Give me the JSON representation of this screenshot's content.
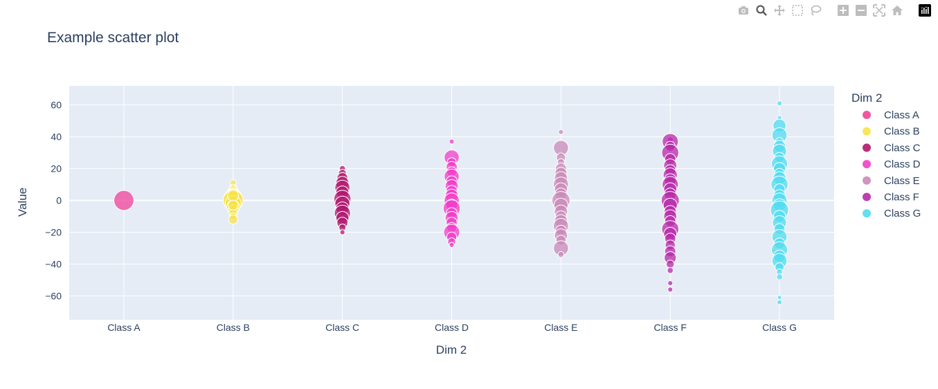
{
  "modebar": {
    "buttons": [
      "camera-icon",
      "zoom-icon",
      "pan-icon",
      "box-select-icon",
      "lasso-icon",
      "zoom-in-icon",
      "zoom-out-icon",
      "autoscale-icon",
      "reset-axes-icon",
      "plotly-logo-icon"
    ]
  },
  "chart_data": {
    "type": "scatter",
    "title": "Example scatter plot",
    "xlabel": "Dim 2",
    "ylabel": "Value",
    "categories": [
      "Class A",
      "Class B",
      "Class C",
      "Class D",
      "Class E",
      "Class F",
      "Class G"
    ],
    "ylim": [
      -75,
      72
    ],
    "yticks": [
      60,
      40,
      20,
      0,
      -20,
      -40,
      -60
    ],
    "ytick_labels": [
      "60",
      "40",
      "20",
      "0",
      "−20",
      "−40",
      "−60"
    ],
    "grid": true,
    "legend": {
      "title": "Dim 2",
      "placement": "right"
    },
    "series": [
      {
        "name": "Class A",
        "color": "#f0429a",
        "points": [
          [
            0,
            4.0
          ]
        ]
      },
      {
        "name": "Class B",
        "color": "#f7e34a",
        "points": [
          [
            11,
            1.2
          ],
          [
            8,
            1.4
          ],
          [
            6,
            2.0
          ],
          [
            4,
            2.6
          ],
          [
            2,
            3.4
          ],
          [
            1,
            3.8
          ],
          [
            0,
            4.0
          ],
          [
            -2,
            3.2
          ],
          [
            -4,
            2.6
          ],
          [
            -6,
            2.0
          ],
          [
            -8,
            1.6
          ],
          [
            -10,
            1.4
          ],
          [
            -12,
            1.8
          ],
          [
            3,
            2.2
          ],
          [
            -3,
            2.0
          ]
        ]
      },
      {
        "name": "Class C",
        "color": "#b0176e",
        "points": [
          [
            20,
            1.2
          ],
          [
            17,
            1.6
          ],
          [
            14,
            2.2
          ],
          [
            11,
            2.6
          ],
          [
            8,
            3.0
          ],
          [
            5,
            2.6
          ],
          [
            1,
            3.4
          ],
          [
            -2,
            3.0
          ],
          [
            -5,
            2.6
          ],
          [
            -8,
            3.2
          ],
          [
            -11,
            2.6
          ],
          [
            -14,
            2.2
          ],
          [
            -17,
            1.4
          ],
          [
            -20,
            1.0
          ]
        ]
      },
      {
        "name": "Class D",
        "color": "#f23dc8",
        "points": [
          [
            37,
            1.0
          ],
          [
            27,
            3.0
          ],
          [
            24,
            1.8
          ],
          [
            21,
            2.2
          ],
          [
            18,
            2.0
          ],
          [
            15,
            3.0
          ],
          [
            12,
            2.2
          ],
          [
            9,
            2.6
          ],
          [
            6,
            2.2
          ],
          [
            3,
            2.6
          ],
          [
            0,
            3.0
          ],
          [
            -3,
            2.4
          ],
          [
            -5,
            3.4
          ],
          [
            -8,
            2.2
          ],
          [
            -11,
            2.6
          ],
          [
            -14,
            2.2
          ],
          [
            -17,
            2.0
          ],
          [
            -20,
            3.2
          ],
          [
            -23,
            2.0
          ],
          [
            -26,
            1.6
          ],
          [
            -28,
            1.0
          ]
        ]
      },
      {
        "name": "Class E",
        "color": "#c98ab8",
        "points": [
          [
            43,
            1.0
          ],
          [
            33,
            3.0
          ],
          [
            27,
            1.8
          ],
          [
            24,
            1.4
          ],
          [
            20,
            2.2
          ],
          [
            17,
            2.4
          ],
          [
            14,
            2.6
          ],
          [
            10,
            3.0
          ],
          [
            7,
            2.6
          ],
          [
            4,
            2.4
          ],
          [
            0,
            3.6
          ],
          [
            -3,
            2.8
          ],
          [
            -7,
            2.6
          ],
          [
            -10,
            2.2
          ],
          [
            -13,
            2.6
          ],
          [
            -16,
            3.0
          ],
          [
            -19,
            2.2
          ],
          [
            -22,
            2.6
          ],
          [
            -25,
            2.0
          ],
          [
            -30,
            3.0
          ],
          [
            -34,
            1.2
          ]
        ]
      },
      {
        "name": "Class F",
        "color": "#b82aaa",
        "points": [
          [
            38,
            1.2
          ],
          [
            37,
            3.2
          ],
          [
            34,
            2.0
          ],
          [
            30,
            3.4
          ],
          [
            26,
            2.2
          ],
          [
            22,
            2.6
          ],
          [
            19,
            2.2
          ],
          [
            16,
            2.8
          ],
          [
            13,
            2.4
          ],
          [
            10,
            3.2
          ],
          [
            7,
            2.6
          ],
          [
            4,
            2.4
          ],
          [
            0,
            3.6
          ],
          [
            -3,
            2.8
          ],
          [
            -7,
            2.4
          ],
          [
            -10,
            2.6
          ],
          [
            -13,
            2.2
          ],
          [
            -18,
            3.4
          ],
          [
            -21,
            2.6
          ],
          [
            -24,
            2.2
          ],
          [
            -28,
            2.0
          ],
          [
            -32,
            2.2
          ],
          [
            -36,
            2.4
          ],
          [
            -40,
            1.6
          ],
          [
            -44,
            1.2
          ],
          [
            -52,
            1.0
          ],
          [
            -56,
            1.0
          ]
        ]
      },
      {
        "name": "Class G",
        "color": "#52dcf0",
        "points": [
          [
            61,
            1.0
          ],
          [
            52,
            0.8
          ],
          [
            47,
            2.6
          ],
          [
            41,
            3.0
          ],
          [
            37,
            1.6
          ],
          [
            34,
            2.4
          ],
          [
            31,
            2.8
          ],
          [
            27,
            2.0
          ],
          [
            23,
            3.2
          ],
          [
            20,
            2.4
          ],
          [
            17,
            2.0
          ],
          [
            14,
            2.6
          ],
          [
            10,
            3.4
          ],
          [
            7,
            2.2
          ],
          [
            3,
            2.4
          ],
          [
            0,
            3.0
          ],
          [
            -3,
            2.6
          ],
          [
            -6,
            3.6
          ],
          [
            -10,
            2.4
          ],
          [
            -14,
            2.8
          ],
          [
            -18,
            2.2
          ],
          [
            -23,
            3.0
          ],
          [
            -27,
            2.2
          ],
          [
            -31,
            3.2
          ],
          [
            -35,
            2.4
          ],
          [
            -38,
            3.0
          ],
          [
            -42,
            1.8
          ],
          [
            -45,
            1.2
          ],
          [
            -48,
            1.2
          ],
          [
            -61,
            0.8
          ],
          [
            -64,
            1.0
          ]
        ]
      }
    ]
  }
}
